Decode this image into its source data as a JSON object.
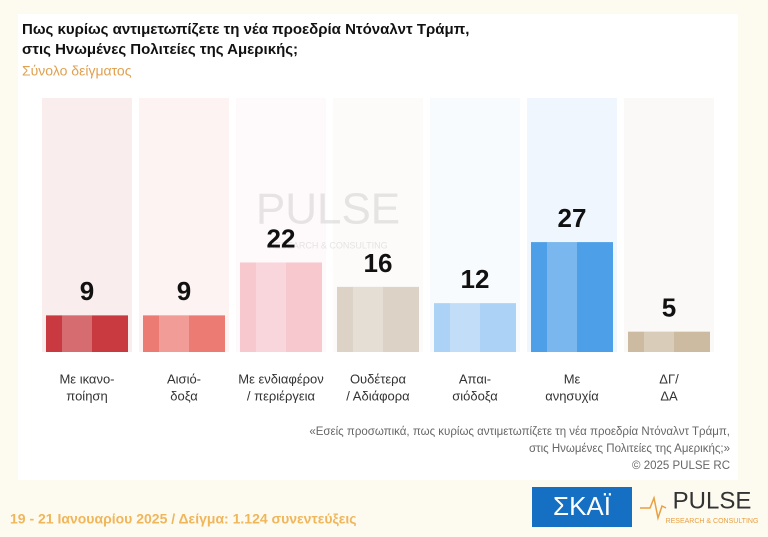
{
  "chart_data": {
    "type": "bar",
    "title": [
      "Πως κυρίως αντιμετωπίζετε τη νέα προεδρία Ντόναλντ Τράμπ,",
      "στις Ηνωμένες Πολιτείες της Αμερικής;"
    ],
    "subtitle": "Σύνολο δείγματος",
    "categories": [
      [
        "Με ικανο-",
        "ποίηση"
      ],
      [
        "Αισιό-",
        "δοξα"
      ],
      [
        "Με ενδιαφέρον",
        "/ περιέργεια"
      ],
      [
        "Ουδέτερα",
        "/ Αδιάφορα"
      ],
      [
        "Απαι-",
        "σιόδοξα"
      ],
      [
        "Με",
        "ανησυχία"
      ],
      [
        "ΔΓ/",
        "ΔΑ"
      ]
    ],
    "values": [
      9,
      9,
      22,
      16,
      12,
      27,
      5
    ],
    "colors": [
      "#c93a40",
      "#ec7b74",
      "#f7c9cf",
      "#dcd3c6",
      "#acd2f5",
      "#4d9fe8",
      "#cdbba1"
    ],
    "note": [
      "«Εσείς προσωπικά, πως κυρίως αντιμετωπίζετε τη νέα προεδρία Ντόναλντ Τράμπ,",
      "στις Ηνωμένες Πολιτείες της Αμερικής;»",
      "©  2025  PULSE RC"
    ],
    "watermark": [
      "PULSE",
      "RESEARCH & CONSULTING"
    ]
  },
  "footer": "19 - 21 Ιανουαρίου 2025  /  Δείγμα:  1.124 συνεντεύξεις",
  "logos": {
    "skai": "ΣΚΑΪ",
    "pulse": "PULSE",
    "pulse_sub": "RESEARCH & CONSULTING"
  }
}
